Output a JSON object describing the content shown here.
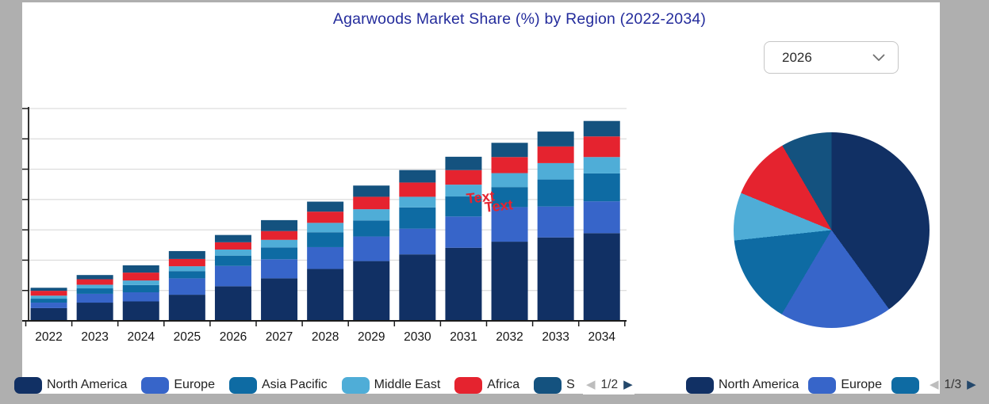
{
  "title": {
    "text": "Agarwoods Market Share (%) by Region (2022-2034)",
    "color": "#242c9c"
  },
  "year_dropdown": {
    "value": "2026"
  },
  "watermark": {
    "line1": "Text",
    "line2": "Text",
    "color": "#e5232f"
  },
  "chart_data": [
    {
      "type": "bar",
      "stacked": true,
      "title": "Agarwoods Market Share (%) by Region (2022-2034)",
      "categories": [
        "2022",
        "2023",
        "2024",
        "2025",
        "2026",
        "2027",
        "2028",
        "2029",
        "2030",
        "2031",
        "2032",
        "2033",
        "2034"
      ],
      "series": [
        {
          "name": "North America",
          "color": "#113064",
          "values": [
            4.2,
            6.0,
            6.4,
            8.6,
            11.4,
            14.0,
            17.1,
            19.7,
            21.9,
            24.1,
            26.1,
            27.5,
            28.9
          ]
        },
        {
          "name": "Europe",
          "color": "#3765c9",
          "values": [
            1.8,
            2.9,
            3.0,
            5.4,
            6.7,
            6.3,
            7.2,
            8.1,
            8.5,
            10.3,
            11.4,
            10.2,
            10.5
          ]
        },
        {
          "name": "Asia Pacific",
          "color": "#0e6ba3",
          "values": [
            1.3,
            1.8,
            2.4,
            2.4,
            3.4,
            3.9,
            4.9,
            5.3,
            7.0,
            6.6,
            6.6,
            8.9,
            9.2
          ]
        },
        {
          "name": "Middle East",
          "color": "#4fadd7",
          "values": [
            1.0,
            1.2,
            1.5,
            1.6,
            2.0,
            2.5,
            3.1,
            3.7,
            3.5,
            3.9,
            4.6,
            5.4,
            5.4
          ]
        },
        {
          "name": "Africa",
          "color": "#e5232f",
          "values": [
            1.6,
            1.8,
            2.6,
            2.4,
            2.4,
            2.9,
            3.7,
            4.1,
            4.7,
            4.8,
            5.3,
            5.5,
            6.8
          ]
        },
        {
          "name": "S",
          "color": "#14527f",
          "values": [
            1.0,
            1.4,
            2.4,
            2.6,
            2.4,
            3.6,
            3.3,
            3.7,
            4.1,
            4.4,
            4.7,
            4.9,
            5.1
          ]
        }
      ],
      "xlabel": "",
      "ylabel": "",
      "ylim": [
        0,
        70
      ],
      "y_tick_step": 10,
      "y_tick_labels_visible": false,
      "grid": true,
      "legend_position": "bottom",
      "annotations": [
        "Text",
        "Text"
      ]
    },
    {
      "type": "pie",
      "slices": [
        {
          "label": "North America",
          "value": 40.0,
          "color": "#113064"
        },
        {
          "label": "Europe",
          "value": 18.5,
          "color": "#3765c9"
        },
        {
          "label": "Asia Pacific",
          "value": 14.8,
          "color": "#0e6ba3"
        },
        {
          "label": "Middle East",
          "value": 7.9,
          "color": "#4fadd7"
        },
        {
          "label": "Africa",
          "value": 10.4,
          "color": "#e5232f"
        },
        {
          "label": "S",
          "value": 8.4,
          "color": "#14527f"
        }
      ],
      "legend_position": "bottom"
    }
  ],
  "bar_legend": {
    "items": [
      {
        "label": "North America",
        "color": "#113064"
      },
      {
        "label": "Europe",
        "color": "#3765c9"
      },
      {
        "label": "Asia Pacific",
        "color": "#0e6ba3"
      },
      {
        "label": "Middle East",
        "color": "#4fadd7"
      },
      {
        "label": "Africa",
        "color": "#e5232f"
      },
      {
        "label": "S",
        "color": "#14527f"
      }
    ],
    "pagination": {
      "page_label": "1/2",
      "prev_enabled": false,
      "next_enabled": true
    }
  },
  "pie_legend": {
    "items": [
      {
        "label": "North America",
        "color": "#113064"
      },
      {
        "label": "Europe",
        "color": "#3765c9"
      },
      {
        "label": "",
        "color": "#0e6ba3"
      }
    ],
    "pagination": {
      "page_label": "1/3",
      "prev_enabled": false,
      "next_enabled": true
    }
  }
}
